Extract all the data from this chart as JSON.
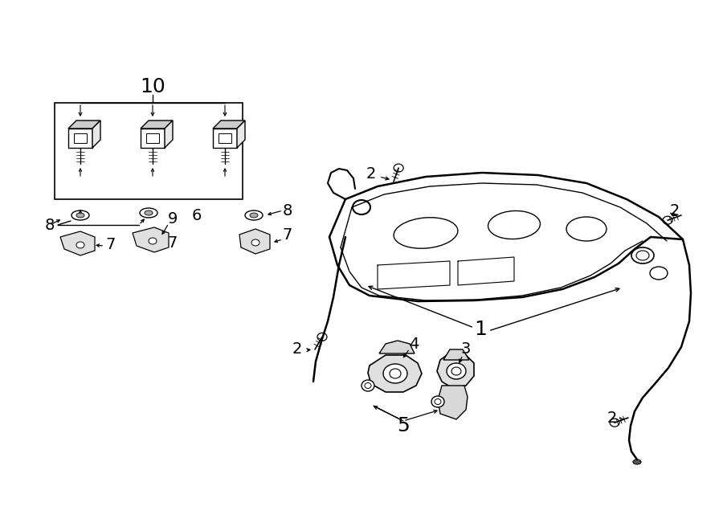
{
  "bg_color": "#ffffff",
  "line_color": "#000000",
  "fig_width": 9.0,
  "fig_height": 6.61,
  "dpi": 100,
  "font_size_large": 18,
  "font_size_med": 14,
  "font_size_small": 12
}
